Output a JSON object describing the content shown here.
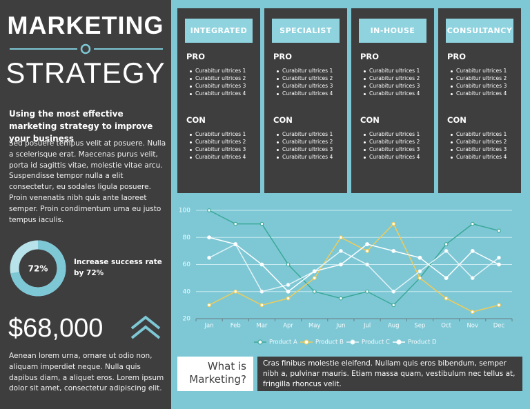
{
  "header": {
    "title_line1": "MARKETING",
    "title_line2": "STRATEGY",
    "subtitle": "Using the most effective marketing strategy to improve your business",
    "body": "Sed posuere tempus velit at posuere. Nulla a scelerisque erat. Maecenas purus velit, porta id sagittis vitae, molestie vitae arcu. Suspendisse tempor nulla a elit consectetur, eu sodales ligula posuere. Proin venenatis nibh quis ante laoreet semper. Proin condimentum urna eu justo tempus iaculis."
  },
  "stat": {
    "value": 72,
    "label": "72%",
    "caption": "Increase success rate by 72%"
  },
  "amount": {
    "text": "$68,000",
    "body": "Aenean lorem urna, ornare ut odio non, aliquam imperdiet neque.  Nulla quis dapibus diam, a aliquet eros. Lorem ipsum dolor sit amet, consectetur adipiscing elit."
  },
  "cards": [
    {
      "title": "INTEGRATED",
      "pro_heading": "PRO",
      "pros": [
        "Curabitur ultrices 1",
        "Curabitur ultrices 2",
        "Curabitur ultrices 3",
        "Curabitur ultrices 4"
      ],
      "con_heading": "CON",
      "cons": [
        "Curabitur ultrices 1",
        "Curabitur ultrices 2",
        "Curabitur ultrices 3",
        "Curabitur ultrices 4"
      ]
    },
    {
      "title": "SPECIALIST",
      "pro_heading": "PRO",
      "pros": [
        "Curabitur ultrices 1",
        "Curabitur ultrices 2",
        "Curabitur ultrices 3",
        "Curabitur ultrices 4"
      ],
      "con_heading": "CON",
      "cons": [
        "Curabitur ultrices 1",
        "Curabitur ultrices 2",
        "Curabitur ultrices 3",
        "Curabitur ultrices 4"
      ]
    },
    {
      "title": "IN-HOUSE",
      "pro_heading": "PRO",
      "pros": [
        "Curabitur ultrices 1",
        "Curabitur ultrices 2",
        "Curabitur ultrices 3",
        "Curabitur ultrices 4"
      ],
      "con_heading": "CON",
      "cons": [
        "Curabitur ultrices 1",
        "Curabitur ultrices 2",
        "Curabitur ultrices 3",
        "Curabitur ultrices 4"
      ]
    },
    {
      "title": "CONSULTANCY",
      "pro_heading": "PRO",
      "pros": [
        "Curabitur ultrices 1",
        "Curabitur ultrices 2",
        "Curabitur ultrices 3",
        "Curabitur ultrices 4"
      ],
      "con_heading": "CON",
      "cons": [
        "Curabitur ultrices 1",
        "Curabitur ultrices 2",
        "Curabitur ultrices 3",
        "Curabitur ultrices 4"
      ]
    }
  ],
  "chart_data": {
    "type": "line",
    "categories": [
      "Jan",
      "Feb",
      "Mar",
      "Apr",
      "May",
      "Jun",
      "Jul",
      "Aug",
      "Sep",
      "Oct",
      "Nov",
      "Dec"
    ],
    "series": [
      {
        "name": "Product A",
        "color": "#3aa896",
        "values": [
          100,
          90,
          90,
          60,
          40,
          35,
          40,
          30,
          50,
          75,
          90,
          85
        ]
      },
      {
        "name": "Product B",
        "color": "#f2cc55",
        "values": [
          30,
          40,
          30,
          35,
          50,
          80,
          70,
          90,
          50,
          35,
          25,
          30
        ]
      },
      {
        "name": "Product C",
        "color": "#e4f3f6",
        "values": [
          65,
          75,
          40,
          45,
          55,
          70,
          60,
          40,
          55,
          70,
          50,
          65
        ]
      },
      {
        "name": "Product D",
        "color": "#ffffff",
        "values": [
          80,
          75,
          60,
          40,
          55,
          60,
          75,
          70,
          65,
          50,
          70,
          60
        ]
      }
    ],
    "ylim": [
      20,
      100
    ],
    "yticks": [
      20,
      40,
      60,
      80,
      100
    ],
    "grid": true,
    "legend": "bottom"
  },
  "footer": {
    "question": "What is Marketing?",
    "text": "Cras finibus molestie eleifend. Nullam quis eros bibendum, semper nibh a, pulvinar mauris. Etiam massa quam, vestibulum nec tellus at, fringilla rhoncus velit."
  }
}
